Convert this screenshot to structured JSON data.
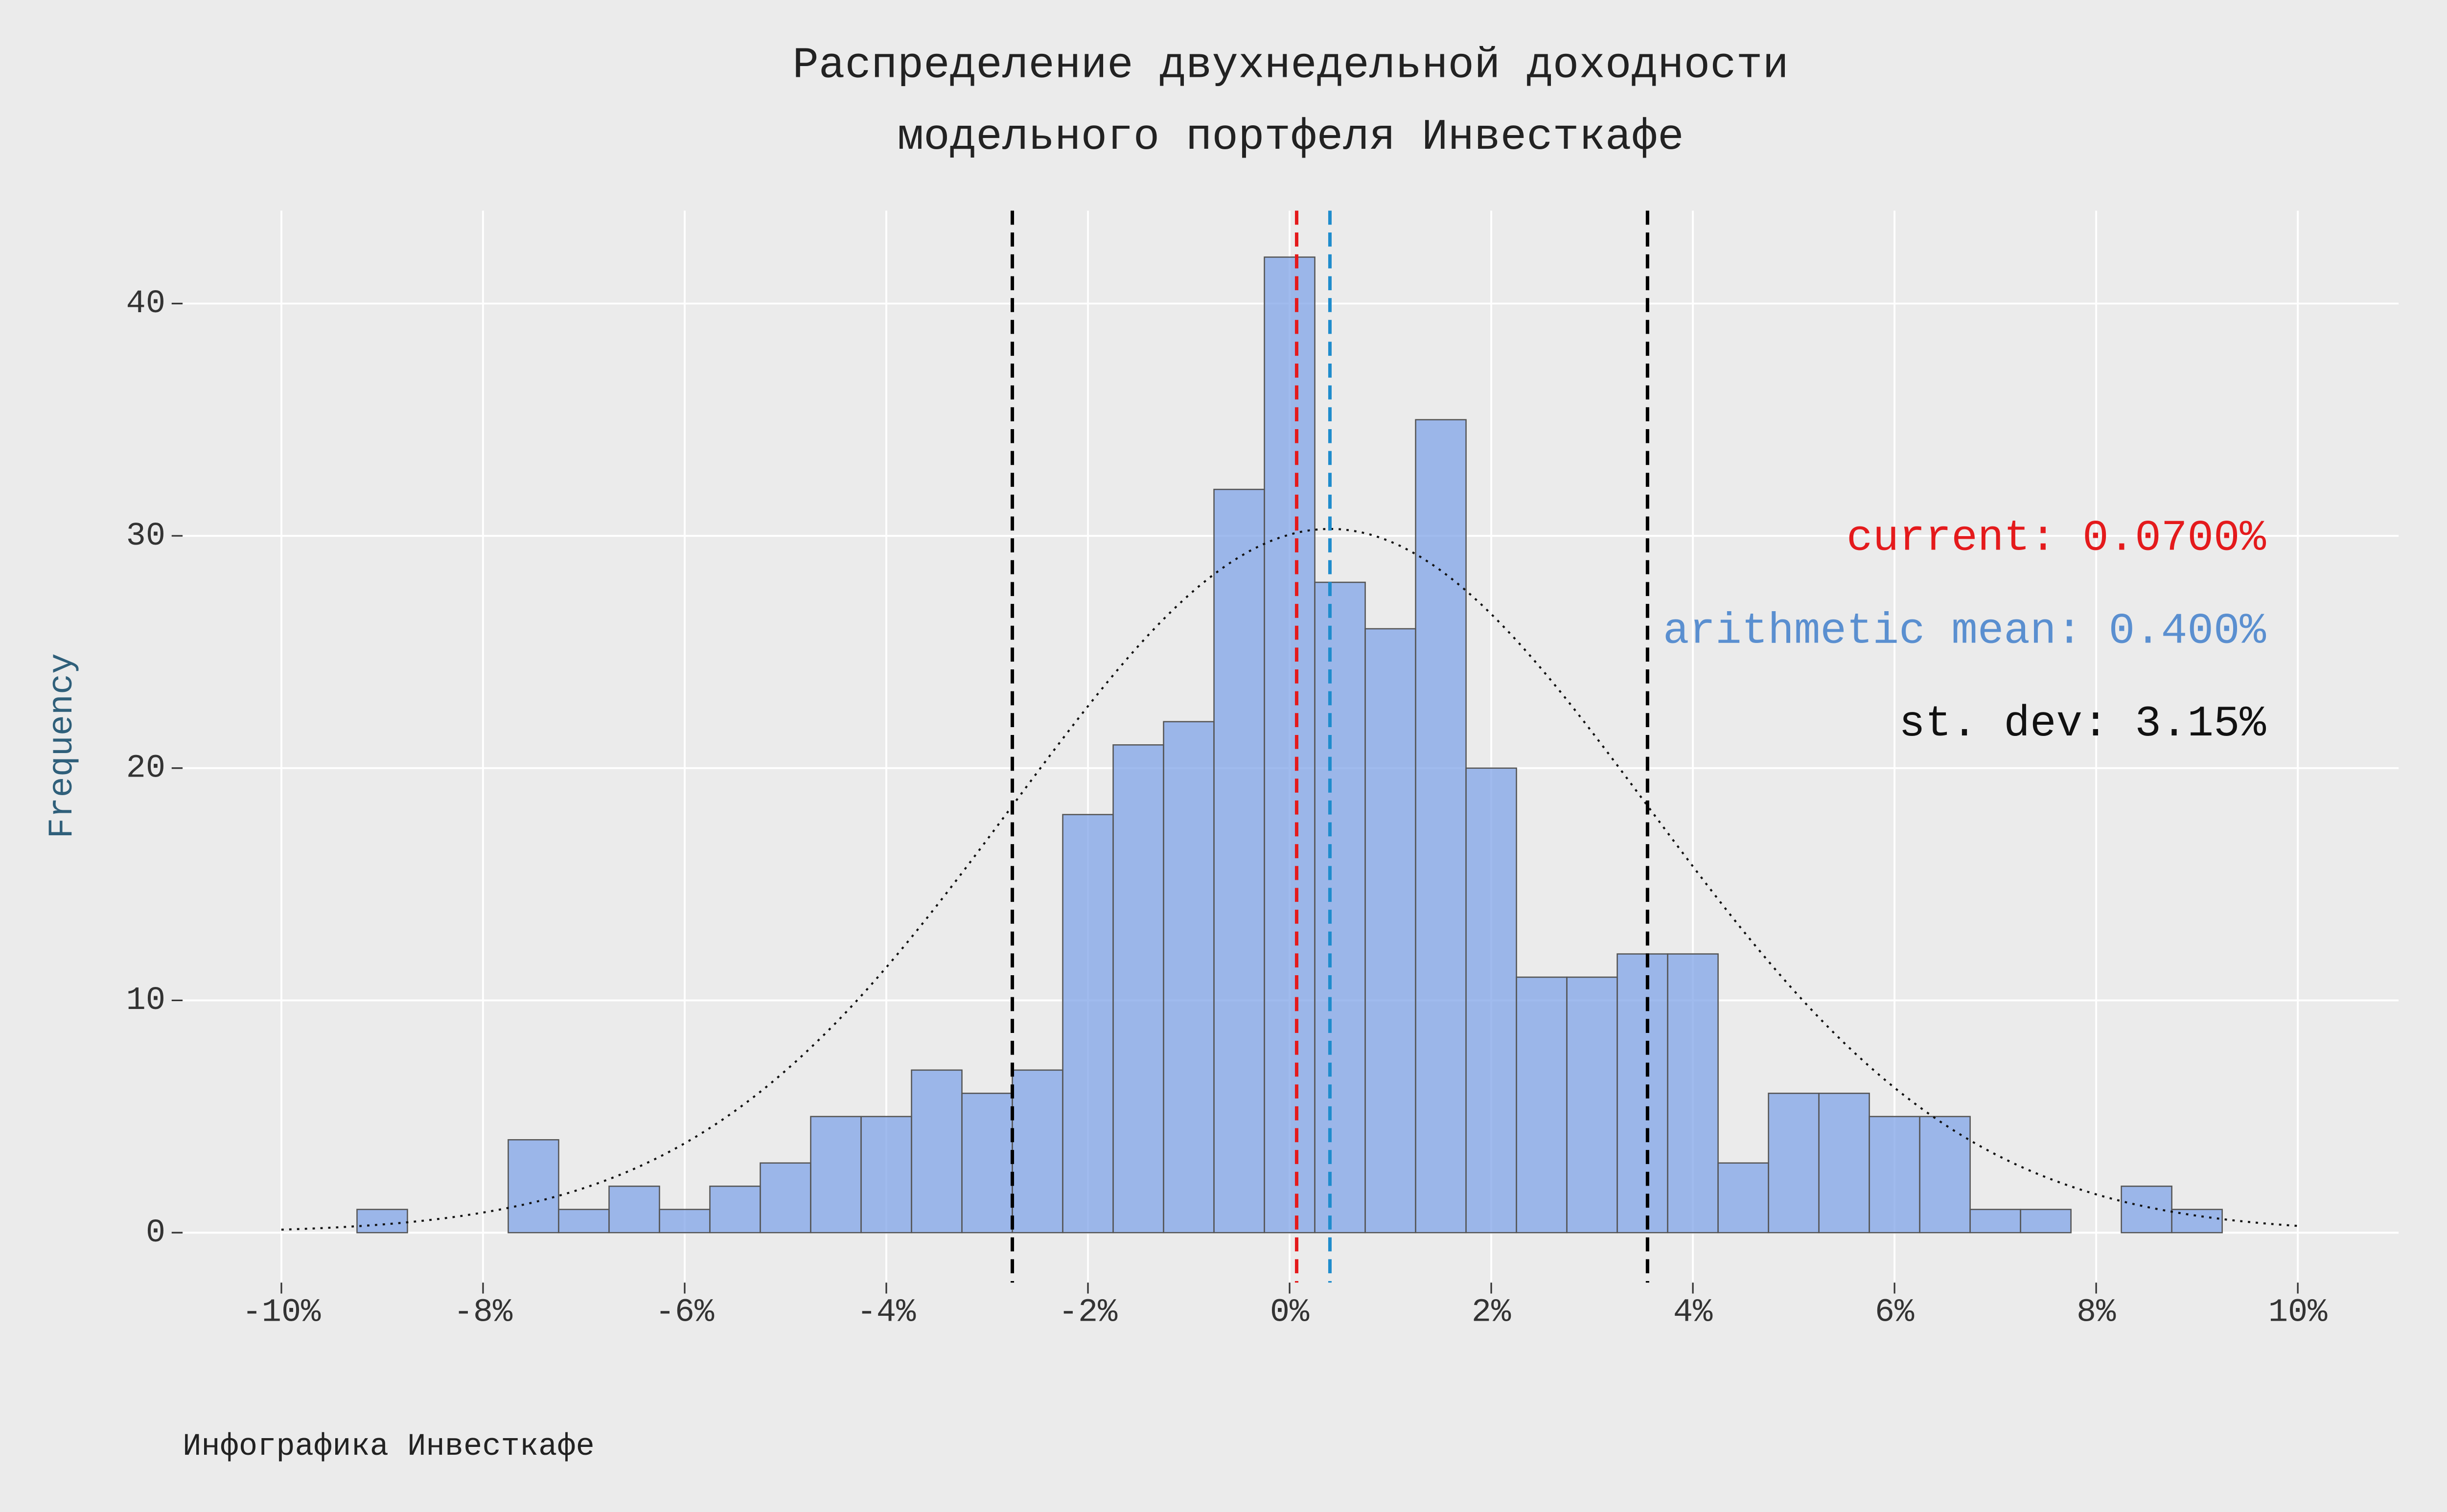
{
  "chart_data": {
    "type": "histogram",
    "title": [
      "Распределение двухнедельной доходности",
      "модельного портфеля Инвесткафе"
    ],
    "y_label": "Frequency",
    "caption": "Инфографика Инвесткафе",
    "bins": [
      -9.25,
      -8.75,
      -8.25,
      -7.75,
      -7.25,
      -6.75,
      -6.25,
      -5.75,
      -5.25,
      -4.75,
      -4.25,
      -3.75,
      -3.25,
      -2.75,
      -2.25,
      -1.75,
      -1.25,
      -0.75,
      -0.25,
      0.25,
      0.75,
      1.25,
      1.75,
      2.25,
      2.75,
      3.25,
      3.75,
      4.25,
      4.75,
      5.25,
      5.75,
      6.25,
      6.75,
      7.25,
      7.75,
      8.25,
      8.75,
      9.25
    ],
    "counts": [
      1,
      0,
      0,
      4,
      1,
      2,
      1,
      2,
      3,
      5,
      5,
      7,
      6,
      7,
      18,
      21,
      22,
      32,
      42,
      28,
      26,
      35,
      20,
      11,
      11,
      12,
      12,
      3,
      6,
      6,
      5,
      5,
      1,
      1,
      0,
      2,
      1
    ],
    "color": "#7ba1e8",
    "xlim": [
      -10.98,
      11.0
    ],
    "ylim": [
      -2.15,
      44.0
    ],
    "xticks": [
      {
        "value": -10,
        "label": "-10%"
      },
      {
        "value": -8,
        "label": "-8%"
      },
      {
        "value": -6,
        "label": "-6%"
      },
      {
        "value": -4,
        "label": "-4%"
      },
      {
        "value": -2,
        "label": "-2%"
      },
      {
        "value": 0,
        "label": "0%"
      },
      {
        "value": 2,
        "label": "2%"
      },
      {
        "value": 4,
        "label": "4%"
      },
      {
        "value": 6,
        "label": "6%"
      },
      {
        "value": 8,
        "label": "8%"
      },
      {
        "value": 10,
        "label": "10%"
      }
    ],
    "yticks": [
      0,
      10,
      20,
      30,
      40
    ],
    "grid": true,
    "reference_lines": [
      {
        "value": 0.07,
        "color": "#e41a1c",
        "label": "current: 0.0700%",
        "label_color": "#e41a1c"
      },
      {
        "value": 0.4,
        "color": "#1f8ccc",
        "label": "arithmetic mean: 0.400%",
        "label_color": "#5a8fd0"
      },
      {
        "value": -2.75,
        "color": "#000000"
      },
      {
        "value": 3.55,
        "color": "#000000"
      }
    ],
    "annotation": "st. dev: 3.15%",
    "normal_curve": {
      "mean": 0.4,
      "sd": 3.15,
      "peak": 30.3,
      "xrange": [
        -10,
        10
      ]
    }
  }
}
